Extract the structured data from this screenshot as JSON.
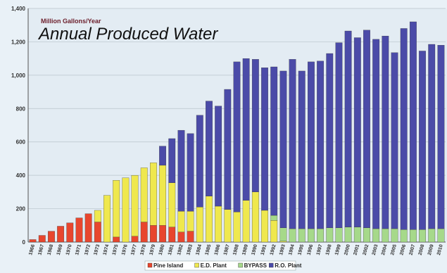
{
  "chart_data": {
    "type": "bar",
    "stacked": true,
    "units_label": "Million Gallons/Year",
    "title": "Annual Produced Water",
    "ylim": [
      0,
      1400
    ],
    "yticks": [
      "0",
      "200",
      "400",
      "600",
      "800",
      "1,000",
      "1,200",
      "1,400"
    ],
    "ytick_values": [
      0,
      200,
      400,
      600,
      800,
      1000,
      1200,
      1400
    ],
    "grid": true,
    "legend_position": "bottom",
    "categories": [
      "1966",
      "1967",
      "1968",
      "1969",
      "1970",
      "1971",
      "1972",
      "1973",
      "1974",
      "1975",
      "1976",
      "1977",
      "1978",
      "1979",
      "1980",
      "1981",
      "1982",
      "1983",
      "1984",
      "1985",
      "1986",
      "1987",
      "1988",
      "1989",
      "1990",
      "1991",
      "1992",
      "1993",
      "1994",
      "1995",
      "1996",
      "1997",
      "1998",
      "1999",
      "2000",
      "2001",
      "2002",
      "2003",
      "2004",
      "2005",
      "2006",
      "2007",
      "2008",
      "2009",
      "2010"
    ],
    "series": [
      {
        "name": "Pine Island",
        "color": "#e8462e",
        "values": [
          15,
          40,
          65,
          95,
          115,
          145,
          170,
          120,
          0,
          30,
          0,
          35,
          120,
          100,
          100,
          90,
          60,
          65,
          0,
          0,
          0,
          0,
          0,
          0,
          0,
          0,
          0,
          0,
          0,
          0,
          0,
          0,
          0,
          0,
          0,
          0,
          0,
          0,
          0,
          0,
          0,
          0,
          0,
          0,
          0
        ]
      },
      {
        "name": "E.D. Plant",
        "color": "#efe84e",
        "values": [
          0,
          0,
          0,
          0,
          0,
          0,
          0,
          70,
          280,
          340,
          385,
          365,
          325,
          375,
          360,
          265,
          125,
          120,
          210,
          275,
          215,
          195,
          180,
          250,
          300,
          190,
          130,
          5,
          0,
          0,
          0,
          0,
          0,
          0,
          0,
          0,
          0,
          0,
          0,
          0,
          0,
          0,
          0,
          0,
          0
        ]
      },
      {
        "name": "BYPASS",
        "color": "#a6d98a",
        "values": [
          0,
          0,
          0,
          0,
          0,
          0,
          0,
          0,
          0,
          0,
          0,
          0,
          0,
          0,
          0,
          0,
          0,
          0,
          0,
          0,
          0,
          0,
          0,
          0,
          0,
          0,
          30,
          80,
          80,
          80,
          80,
          80,
          85,
          85,
          90,
          90,
          85,
          80,
          80,
          80,
          75,
          75,
          75,
          80,
          80
        ]
      },
      {
        "name": "R.O. Plant",
        "color": "#4b4ba8",
        "values": [
          0,
          0,
          0,
          0,
          0,
          0,
          0,
          0,
          0,
          0,
          0,
          0,
          0,
          0,
          115,
          265,
          485,
          465,
          550,
          570,
          600,
          720,
          900,
          850,
          795,
          855,
          890,
          940,
          1015,
          945,
          1000,
          1005,
          1045,
          1110,
          1175,
          1135,
          1185,
          1135,
          1155,
          1055,
          1205,
          1245,
          1070,
          1105,
          1100
        ]
      }
    ],
    "legend_entries": [
      "Pine Island",
      "E.D. Plant",
      "BYPASS",
      "R.O. Plant"
    ]
  }
}
